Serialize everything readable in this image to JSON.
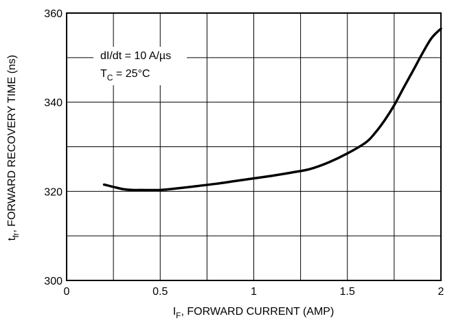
{
  "chart_data": {
    "type": "line",
    "title": "",
    "xlabel": {
      "main": "I",
      "sub": "F",
      "rest": ", FORWARD CURRENT (AMP)"
    },
    "ylabel": {
      "main": "t",
      "sub": "fr",
      "rest": ", FORWARD RECOVERY TIME (ns)"
    },
    "xlim": [
      0,
      2
    ],
    "ylim": [
      300,
      360
    ],
    "x_ticks": [
      0,
      0.5,
      1,
      1.5,
      2
    ],
    "x_tick_labels": [
      "0",
      "0.5",
      "1",
      "1.5",
      "2"
    ],
    "y_ticks": [
      300,
      320,
      340,
      360
    ],
    "y_tick_labels": [
      "300",
      "320",
      "340",
      "360"
    ],
    "x_grid": [
      0.25,
      0.5,
      0.75,
      1,
      1.25,
      1.5,
      1.75
    ],
    "y_grid": [
      310,
      320,
      330,
      340,
      350
    ],
    "grid": true,
    "annotations": {
      "line1": "dI/dt = 10 A/µs",
      "line2_main": "T",
      "line2_sub": "C",
      "line2_rest": " = 25°C"
    },
    "series": [
      {
        "x": [
          0.2,
          0.25,
          0.3,
          0.35,
          0.4,
          0.5,
          0.6,
          0.7,
          0.8,
          0.9,
          1.0,
          1.1,
          1.2,
          1.3,
          1.4,
          1.5,
          1.6,
          1.65,
          1.7,
          1.75,
          1.8,
          1.85,
          1.9,
          1.95,
          2.0
        ],
        "y": [
          321.5,
          321.0,
          320.5,
          320.3,
          320.3,
          320.3,
          320.7,
          321.2,
          321.7,
          322.3,
          322.9,
          323.5,
          324.2,
          325.0,
          326.5,
          328.5,
          331.0,
          333.2,
          336.0,
          339.3,
          343.2,
          347.0,
          350.9,
          354.4,
          356.5
        ]
      }
    ],
    "line_color": "#000000"
  }
}
